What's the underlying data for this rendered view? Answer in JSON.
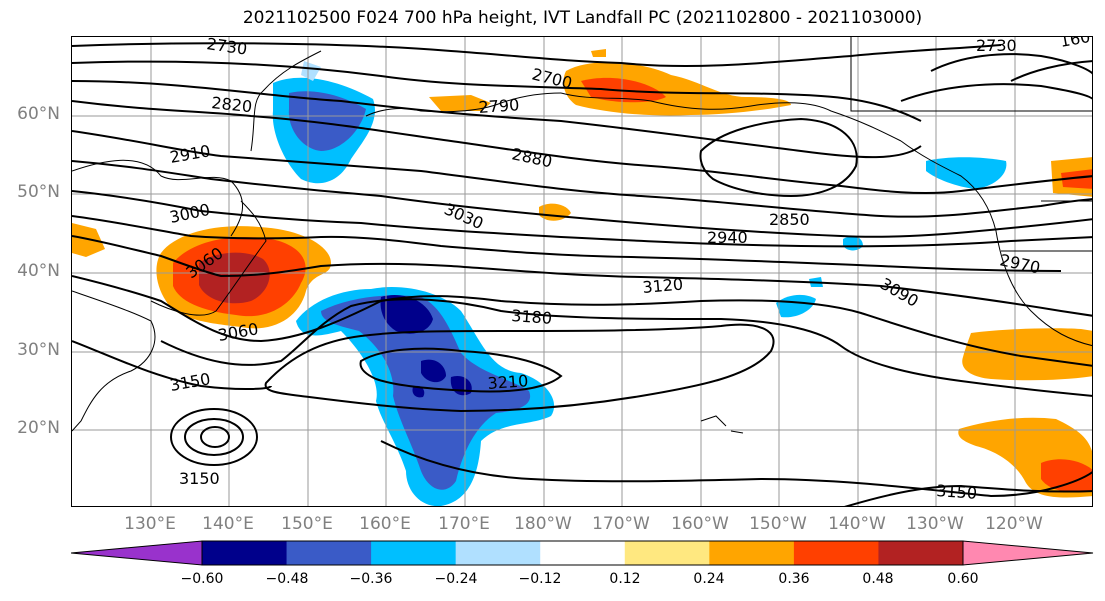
{
  "title": "2021102500 F024 700 hPa height, IVT Landfall PC (2021102800 - 2021103000)",
  "lat_labels": [
    "60°N",
    "50°N",
    "40°N",
    "30°N",
    "20°N"
  ],
  "lon_labels": [
    "130°E",
    "140°E",
    "150°E",
    "160°E",
    "170°E",
    "180°W",
    "170°W",
    "160°W",
    "150°W",
    "140°W",
    "130°W",
    "120°W"
  ],
  "contour_labels": [
    "2730",
    "2820",
    "2910",
    "3000",
    "3060",
    "3060",
    "3150",
    "3150",
    "2700",
    "2790",
    "2880",
    "3030",
    "3120",
    "3180",
    "3210",
    "2850",
    "2940",
    "3090",
    "2970",
    "2730",
    "160",
    "3150"
  ],
  "colorbar": {
    "ticks": [
      "−0.60",
      "−0.48",
      "−0.36",
      "−0.24",
      "−0.12",
      "0.12",
      "0.24",
      "0.36",
      "0.48",
      "0.60"
    ],
    "colors": [
      "#9932cc",
      "#00008b",
      "#3a5bc7",
      "#00bfff",
      "#b0e0ff",
      "#ffffff",
      "#ffe880",
      "#ffa500",
      "#ff4000",
      "#b22222",
      "#ff88b0"
    ]
  }
}
